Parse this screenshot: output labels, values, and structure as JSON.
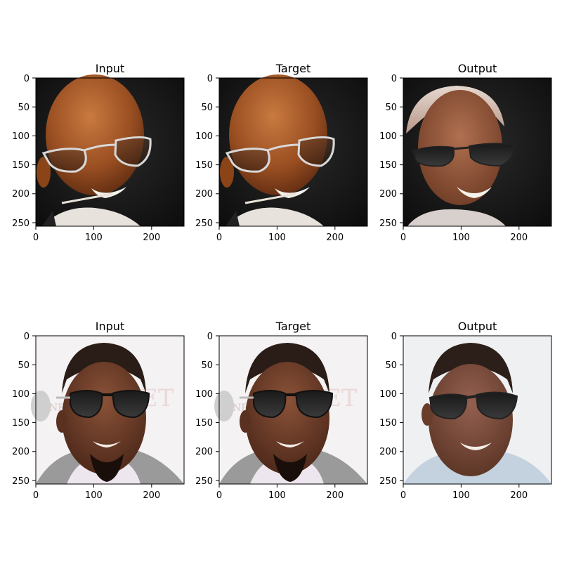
{
  "chart_data": [
    {
      "type": "other",
      "title": "Input",
      "x_ticks": [
        0,
        100,
        200
      ],
      "y_ticks": [
        0,
        50,
        100,
        150,
        200,
        250
      ],
      "xlim": [
        0,
        256
      ],
      "ylim": [
        256,
        0
      ],
      "image": "photo: smiling bald man wearing aviator glasses with a white stick in mouth, dark background",
      "colors": {
        "skin": "#9a4f22",
        "background": "#151515"
      }
    },
    {
      "type": "other",
      "title": "Target",
      "x_ticks": [
        0,
        100,
        200
      ],
      "y_ticks": [
        0,
        50,
        100,
        150,
        200,
        250
      ],
      "xlim": [
        0,
        256
      ],
      "ylim": [
        256,
        0
      ],
      "image": "photo: smiling bald man wearing aviator glasses with a white stick in mouth, dark background",
      "colors": {
        "skin": "#9a4f22",
        "background": "#151515"
      }
    },
    {
      "type": "other",
      "title": "Output",
      "x_ticks": [
        0,
        100,
        200
      ],
      "y_ticks": [
        0,
        50,
        100,
        150,
        200,
        250
      ],
      "xlim": [
        0,
        256
      ],
      "ylim": [
        256,
        0
      ],
      "image": "generated photo: smiling man with dark sunglasses and light grey hair, dark background",
      "colors": {
        "skin": "#8a5234",
        "background": "#101010"
      }
    },
    {
      "type": "other",
      "title": "Input",
      "x_ticks": [
        0,
        100,
        200
      ],
      "y_ticks": [
        0,
        50,
        100,
        150,
        200,
        250
      ],
      "xlim": [
        0,
        256
      ],
      "ylim": [
        256,
        0
      ],
      "image": "photo: man with short hair wearing dark sunglasses and goatee, grey suit, white backdrop",
      "colors": {
        "skin": "#6e3f2c",
        "background": "#f4f2f2"
      }
    },
    {
      "type": "other",
      "title": "Target",
      "x_ticks": [
        0,
        100,
        200
      ],
      "y_ticks": [
        0,
        50,
        100,
        150,
        200,
        250
      ],
      "xlim": [
        0,
        256
      ],
      "ylim": [
        256,
        0
      ],
      "image": "photo: man with short hair wearing dark sunglasses and goatee, grey suit, white backdrop",
      "colors": {
        "skin": "#6e3f2c",
        "background": "#f4f2f2"
      }
    },
    {
      "type": "other",
      "title": "Output",
      "x_ticks": [
        0,
        100,
        200
      ],
      "y_ticks": [
        0,
        50,
        100,
        150,
        200,
        250
      ],
      "xlim": [
        0,
        256
      ],
      "ylim": [
        256,
        0
      ],
      "image": "generated photo: man with short hair wearing dark sunglasses, light blue shirt, white backdrop",
      "colors": {
        "skin": "#774a38",
        "background": "#eef0f2"
      }
    }
  ]
}
